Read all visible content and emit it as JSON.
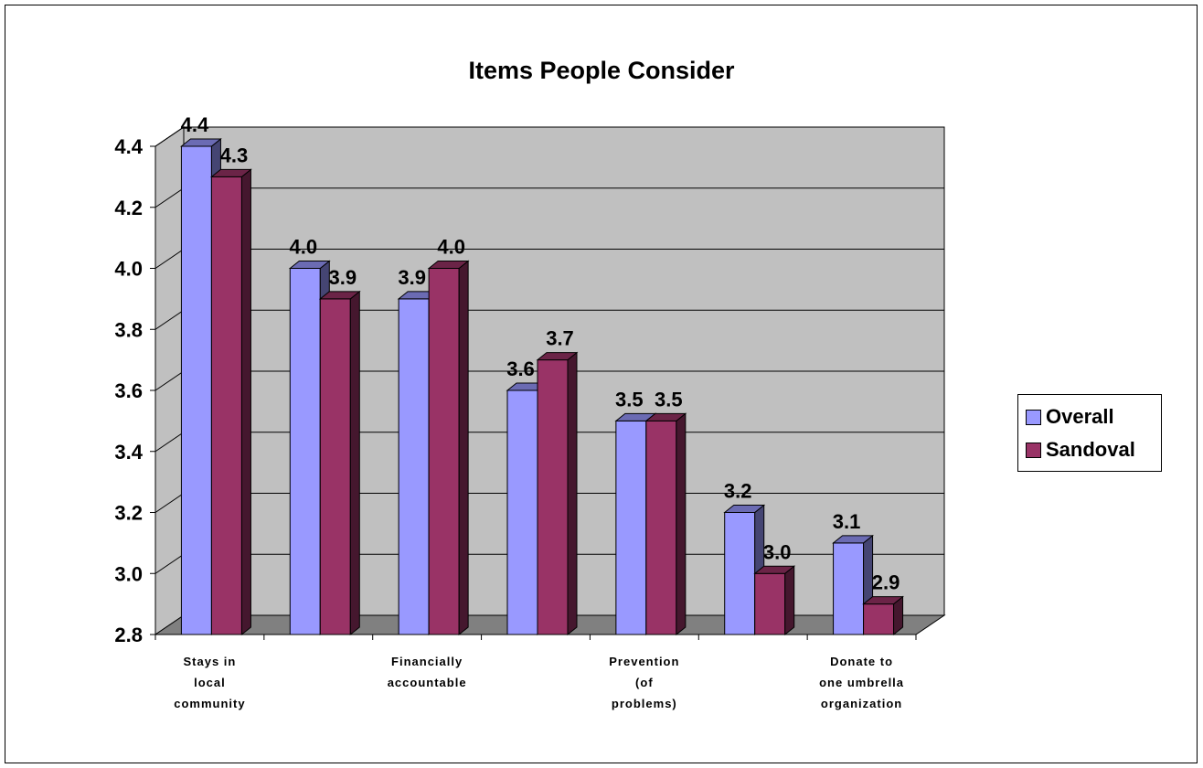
{
  "chart_data": {
    "type": "bar",
    "title": "Items People Consider",
    "xlabel": "",
    "ylabel": "",
    "ylim": [
      2.8,
      4.4
    ],
    "yticks": [
      "4.4",
      "4.2",
      "4.0",
      "3.8",
      "3.6",
      "3.4",
      "3.2",
      "3.0",
      "2.8"
    ],
    "ytick_values": [
      4.4,
      4.2,
      4.0,
      3.8,
      3.6,
      3.4,
      3.2,
      3.0,
      2.8
    ],
    "grid": true,
    "legend_position": "right",
    "style": "3d clustered columns",
    "categories": [
      "Stays in local community",
      "",
      "Financially accountable",
      "",
      "Prevention (of problems)",
      "",
      "Donate to one umbrella organization"
    ],
    "category_label_lines": [
      [
        "Stays in",
        "local",
        "community"
      ],
      [],
      [
        "Financially",
        "accountable"
      ],
      [],
      [
        "Prevention",
        "(of",
        "problems)"
      ],
      [],
      [
        "Donate to",
        "one umbrella",
        "organization"
      ]
    ],
    "series": [
      {
        "name": "Overall",
        "color": "#9999ff",
        "values": [
          4.4,
          4.0,
          3.9,
          3.6,
          3.5,
          3.2,
          3.1
        ],
        "labels": [
          "4.4",
          "4.0",
          "3.9",
          "3.6",
          "3.5",
          "3.2",
          "3.1"
        ]
      },
      {
        "name": "Sandoval",
        "color": "#993366",
        "values": [
          4.3,
          3.9,
          4.0,
          3.7,
          3.5,
          3.0,
          2.9
        ],
        "labels": [
          "4.3",
          "3.9",
          "4.0",
          "3.7",
          "3.5",
          "3.0",
          "2.9"
        ]
      }
    ],
    "colors": {
      "plot_wall": "#c0c0c0",
      "floor": "#808080",
      "gridline": "#000000"
    }
  }
}
